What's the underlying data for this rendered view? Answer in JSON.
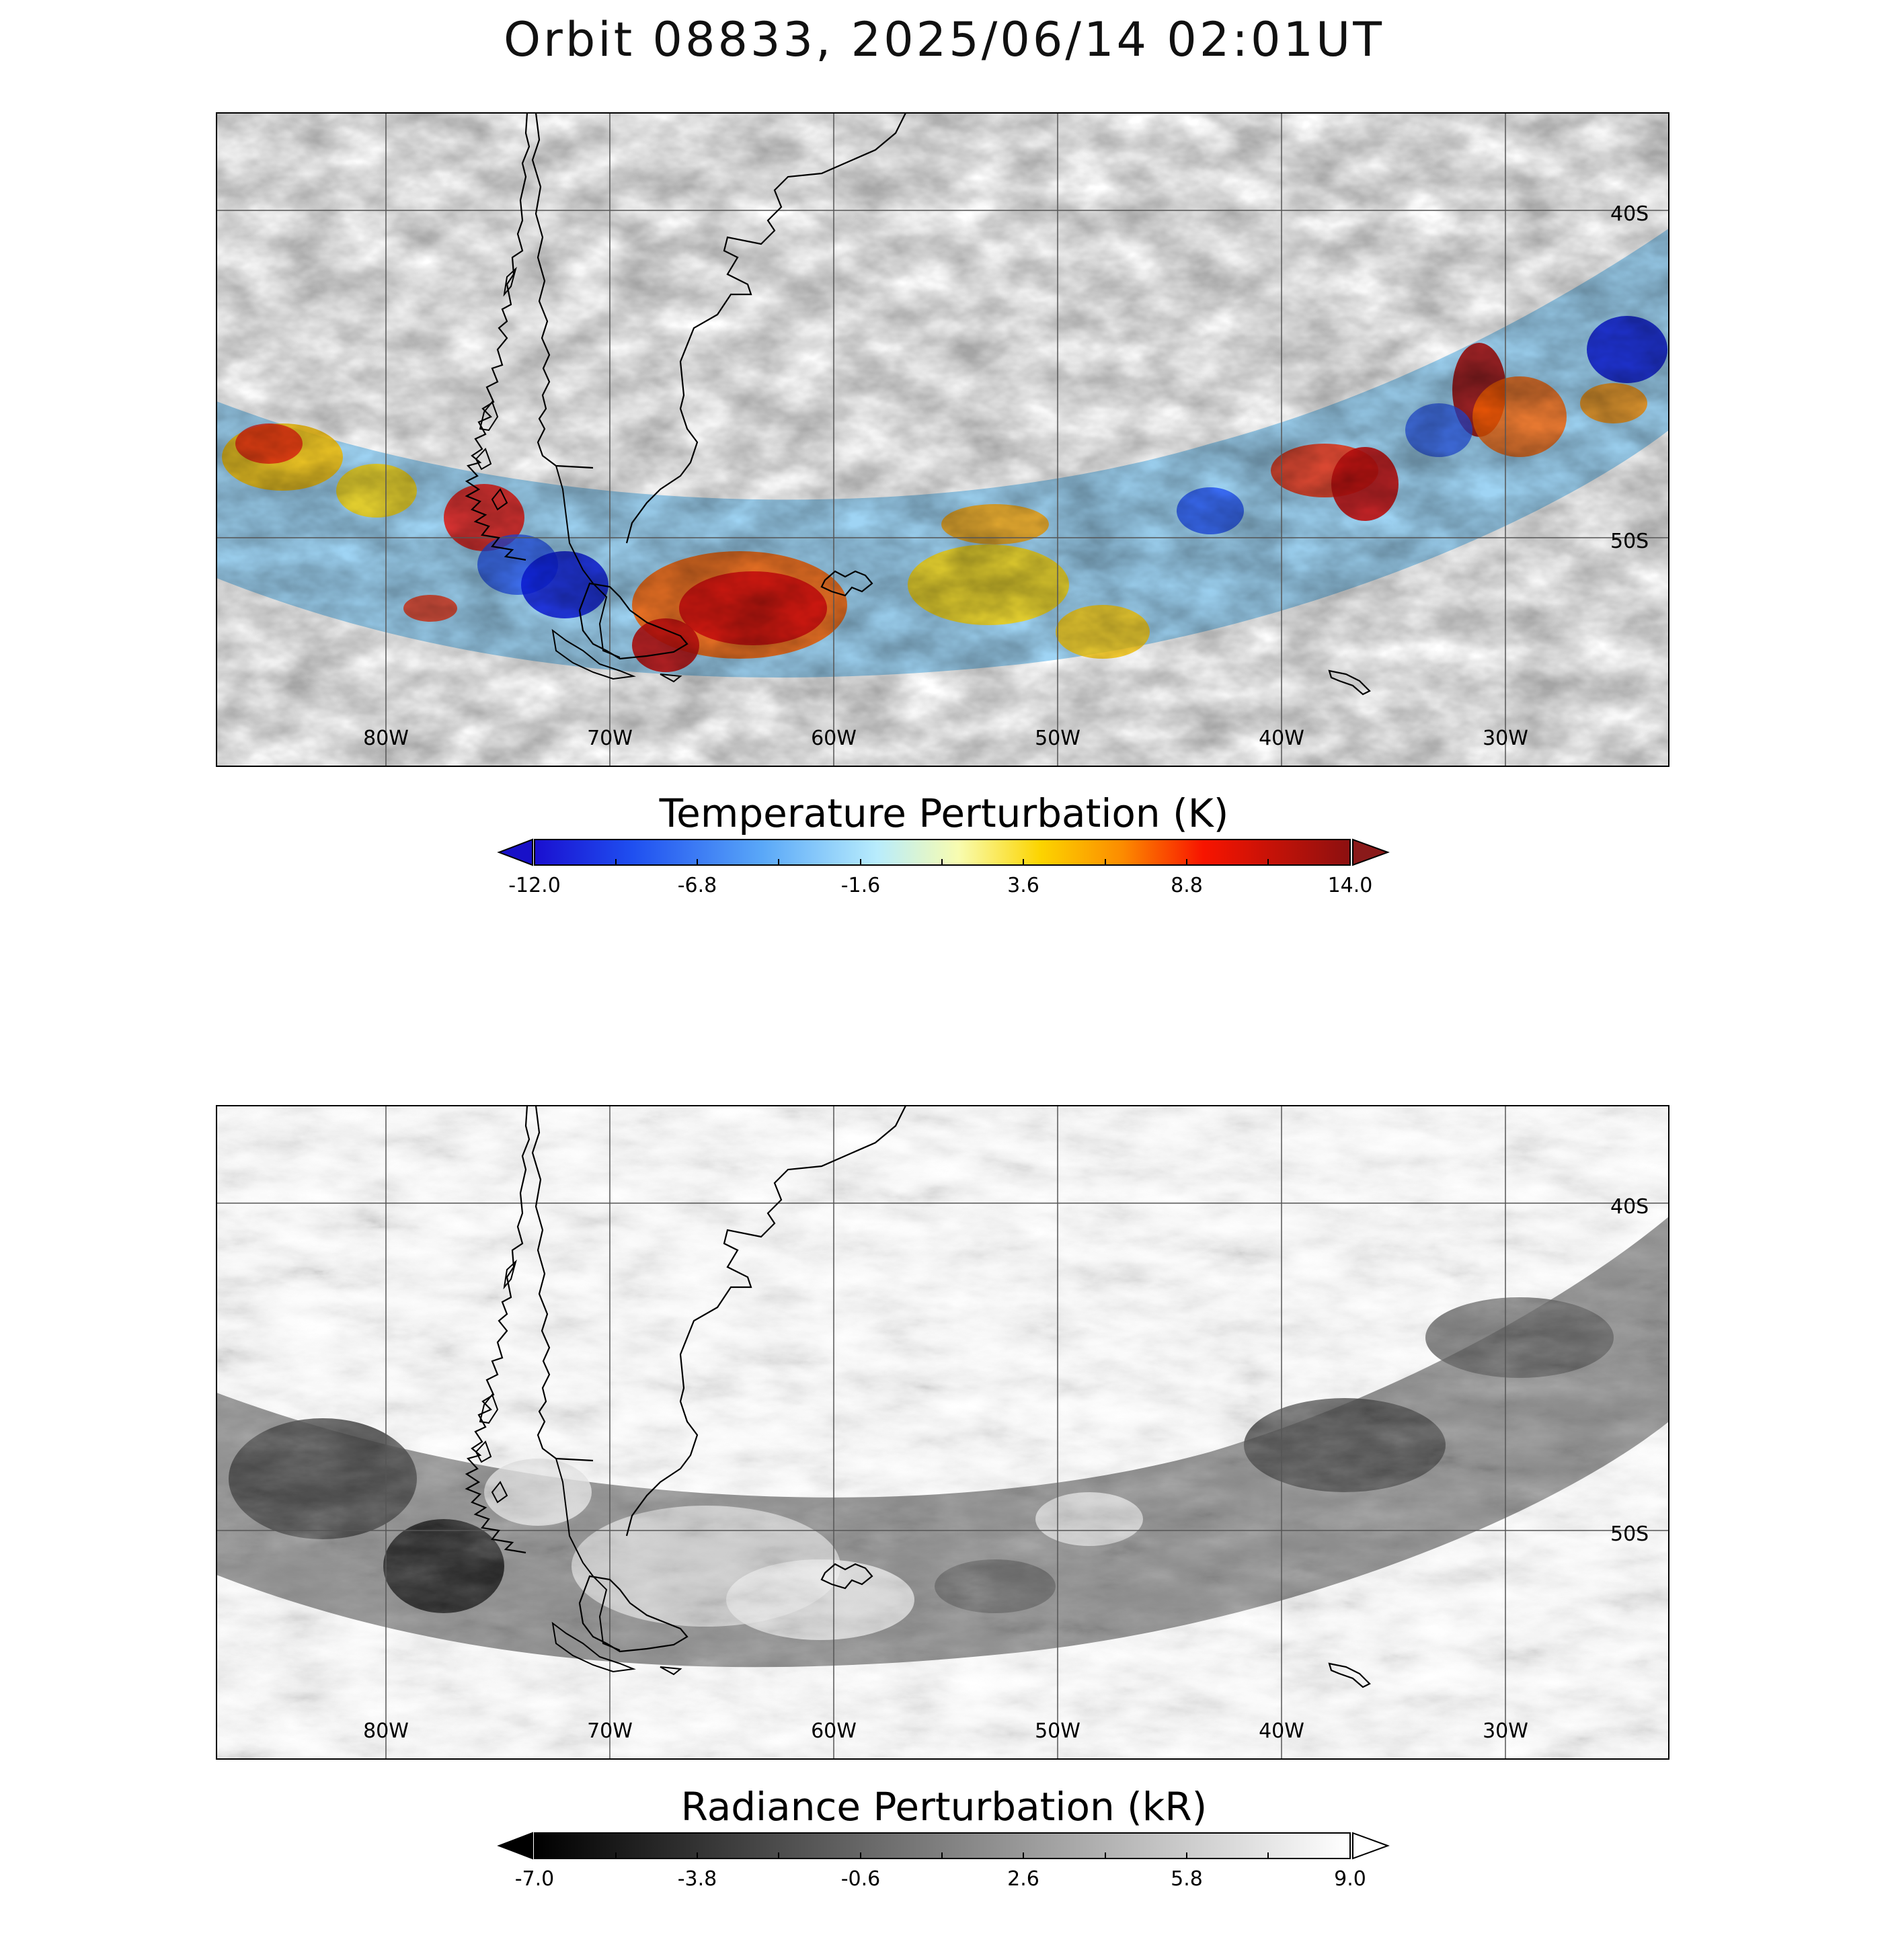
{
  "title": "Orbit 08833, 2025/06/14 02:01UT",
  "panels": [
    {
      "name": "temperature",
      "colorbar": {
        "title": "Temperature Perturbation (K)",
        "colormap": "jet-like",
        "min": -12.0,
        "max": 14.0,
        "tick_labels": [
          "-12.0",
          "-6.8",
          "-1.6",
          "3.6",
          "8.8",
          "14.0"
        ],
        "extend": "both",
        "low_arrow_color": "#1810c8",
        "high_arrow_color": "#8a1a1a"
      },
      "lon_labels": [
        "80W",
        "70W",
        "60W",
        "50W",
        "40W",
        "30W"
      ],
      "lat_labels": [
        "40S",
        "50S"
      ]
    },
    {
      "name": "radiance",
      "colorbar": {
        "title": "Radiance Perturbation (kR)",
        "colormap": "gray",
        "min": -7.0,
        "max": 9.0,
        "tick_labels": [
          "-7.0",
          "-3.8",
          "-0.6",
          "2.6",
          "5.8",
          "9.0"
        ],
        "extend": "both",
        "low_arrow_color": "#000000",
        "high_arrow_color": "#ffffff"
      },
      "lon_labels": [
        "80W",
        "70W",
        "60W",
        "50W",
        "40W",
        "30W"
      ],
      "lat_labels": [
        "40S",
        "50S"
      ]
    }
  ]
}
